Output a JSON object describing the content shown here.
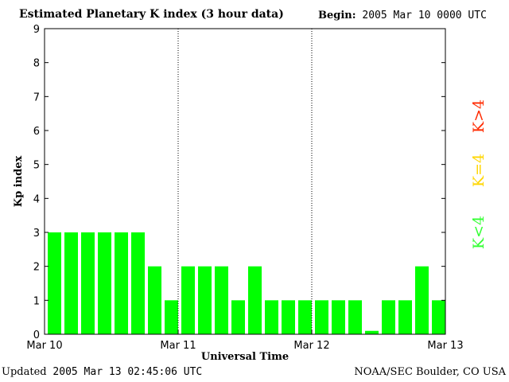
{
  "header": {
    "title": "Estimated Planetary K index (3 hour data)",
    "begin_label": "Begin:",
    "begin_value": "2005 Mar 10 0000 UTC"
  },
  "footer": {
    "updated_label": "Updated",
    "updated_value": "2005 Mar 13 02:45:06 UTC",
    "credit": "NOAA/SEC Boulder, CO USA"
  },
  "legend": [
    {
      "label": "K>4",
      "color": "#ff2a00"
    },
    {
      "label": "K=4",
      "color": "#ffd600"
    },
    {
      "label": "K<4",
      "color": "#33ff33"
    }
  ],
  "chart_data": {
    "type": "bar",
    "title": "Estimated Planetary K index (3 hour data)",
    "xlabel": "Universal Time",
    "ylabel": "Kp index",
    "ylim": [
      0,
      9
    ],
    "yticks": [
      "0",
      "1",
      "2",
      "3",
      "4",
      "5",
      "6",
      "7",
      "8",
      "9"
    ],
    "xticks": [
      "Mar 10",
      "Mar 11",
      "Mar 12",
      "Mar 13"
    ],
    "day_separators": [
      "Mar 11",
      "Mar 12"
    ],
    "bar_color": "#00ff00",
    "categories": [
      "Mar 10 00",
      "Mar 10 03",
      "Mar 10 06",
      "Mar 10 09",
      "Mar 10 12",
      "Mar 10 15",
      "Mar 10 18",
      "Mar 10 21",
      "Mar 11 00",
      "Mar 11 03",
      "Mar 11 06",
      "Mar 11 09",
      "Mar 11 12",
      "Mar 11 15",
      "Mar 11 18",
      "Mar 11 21",
      "Mar 12 00",
      "Mar 12 03",
      "Mar 12 06",
      "Mar 12 09",
      "Mar 12 12",
      "Mar 12 15",
      "Mar 12 18",
      "Mar 12 21"
    ],
    "values": [
      3,
      3,
      3,
      3,
      3,
      3,
      2,
      1,
      2,
      2,
      2,
      1,
      2,
      1,
      1,
      1,
      1,
      1,
      1,
      0.1,
      1,
      1,
      2,
      1
    ]
  }
}
